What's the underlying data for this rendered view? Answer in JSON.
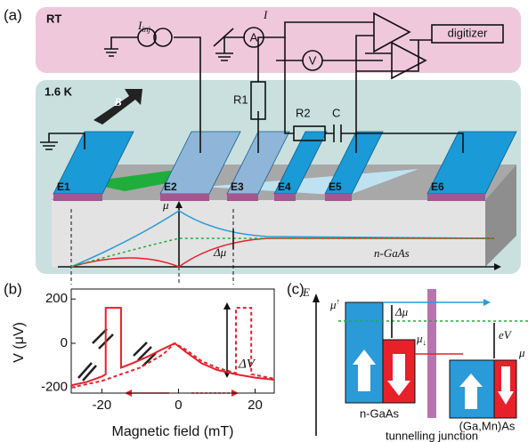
{
  "panel_a": {
    "label": "(a)",
    "rt": "RT",
    "cold": "1.6 K",
    "injector": "I",
    "injector_sub": "inj",
    "current": "I",
    "ammeter": "A",
    "voltmeter": "V",
    "digitizer": "digitizer",
    "field": "B",
    "r1": "R1",
    "r2": "R2",
    "c": "C",
    "contacts": [
      "E1",
      "E2",
      "E3",
      "E4",
      "E5",
      "E6"
    ],
    "mu": "μ",
    "delta_mu": "Δμ",
    "material": "n-GaAs"
  },
  "panel_b": {
    "label": "(b)",
    "ylabel": "V (μV)",
    "xlabel": "Magnetic field (mT)",
    "annotation": "ΔV",
    "xlim": [
      -28,
      25
    ],
    "ylim": [
      -225,
      245
    ],
    "xticks": [
      -20,
      0,
      20
    ],
    "yticks": [
      -200,
      0,
      200
    ],
    "series": [
      {
        "color": "#e8202a",
        "dashed": false,
        "x": [
          -28,
          -24,
          -20,
          -19,
          -19,
          -15,
          -15,
          -12,
          -8,
          -4,
          -1,
          2,
          6,
          10,
          15,
          20,
          25
        ],
        "y": [
          -190,
          -175,
          -150,
          -140,
          160,
          160,
          -110,
          -90,
          -60,
          -25,
          0,
          -40,
          -90,
          -120,
          -140,
          -155,
          -165
        ]
      },
      {
        "color": "#e8202a",
        "dashed": true,
        "x": [
          -28,
          -20,
          -10,
          -4,
          -1,
          2,
          6,
          10,
          15,
          15,
          19,
          19,
          22,
          25
        ],
        "y": [
          -200,
          -170,
          -110,
          -50,
          0,
          -30,
          -80,
          -110,
          -135,
          160,
          160,
          -140,
          -150,
          -160
        ]
      }
    ]
  },
  "panel_c": {
    "label": "(c)",
    "axis": "E",
    "mu": "μ",
    "mu_up_sub": "↑",
    "mu_down_sub": "↓",
    "delta_mu": "Δμ",
    "ev": "eV",
    "left": "n-GaAs",
    "right": "(Ga,Mn)As",
    "junction": "tunnelling junction"
  }
}
